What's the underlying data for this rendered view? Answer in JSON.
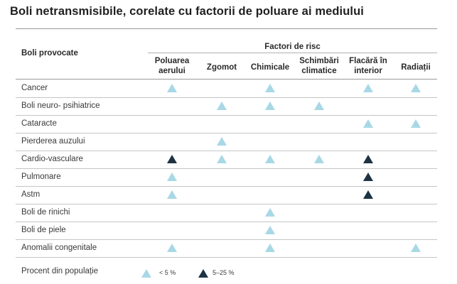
{
  "title": "Boli netransmisibile, corelate cu factorii de poluare ai mediului",
  "header": {
    "row_header": "Boli provocate",
    "group_title": "Factori de risc",
    "columns": [
      {
        "key": "air",
        "label": "Poluarea aerului"
      },
      {
        "key": "noise",
        "label": "Zgomot"
      },
      {
        "key": "chem",
        "label": "Chimicale"
      },
      {
        "key": "climate",
        "label": "Schimbări climatice"
      },
      {
        "key": "fire",
        "label": "Flacără în interior"
      },
      {
        "key": "rad",
        "label": "Radiații"
      }
    ]
  },
  "rows": [
    {
      "label": "Cancer",
      "cells": [
        "low",
        "",
        "low",
        "",
        "low",
        "low"
      ]
    },
    {
      "label": "Boli neuro- psihiatrice",
      "cells": [
        "",
        "low",
        "low",
        "low",
        "",
        ""
      ]
    },
    {
      "label": "Cataracte",
      "cells": [
        "",
        "",
        "",
        "",
        "low",
        "low"
      ]
    },
    {
      "label": "Pierderea auzului",
      "cells": [
        "",
        "low",
        "",
        "",
        "",
        ""
      ]
    },
    {
      "label": "Cardio-vasculare",
      "cells": [
        "high",
        "low",
        "low",
        "low",
        "high",
        ""
      ]
    },
    {
      "label": "Pulmonare",
      "cells": [
        "low",
        "",
        "",
        "",
        "high",
        ""
      ]
    },
    {
      "label": "Astm",
      "cells": [
        "low",
        "",
        "",
        "",
        "high",
        ""
      ]
    },
    {
      "label": "Boli de rinichi",
      "cells": [
        "",
        "",
        "low",
        "",
        "",
        ""
      ]
    },
    {
      "label": "Boli de piele",
      "cells": [
        "",
        "",
        "low",
        "",
        "",
        ""
      ]
    },
    {
      "label": "Anomalii congenitale",
      "cells": [
        "low",
        "",
        "low",
        "",
        "",
        "low"
      ]
    }
  ],
  "legend": {
    "label": "Procent din populație",
    "items": [
      {
        "key": "low",
        "text": "< 5 %",
        "color": "#a8d8e6",
        "icon": "triangle-light-icon"
      },
      {
        "key": "high",
        "text": "5–25 %",
        "color": "#1d3344",
        "icon": "triangle-dark-icon"
      }
    ]
  }
}
